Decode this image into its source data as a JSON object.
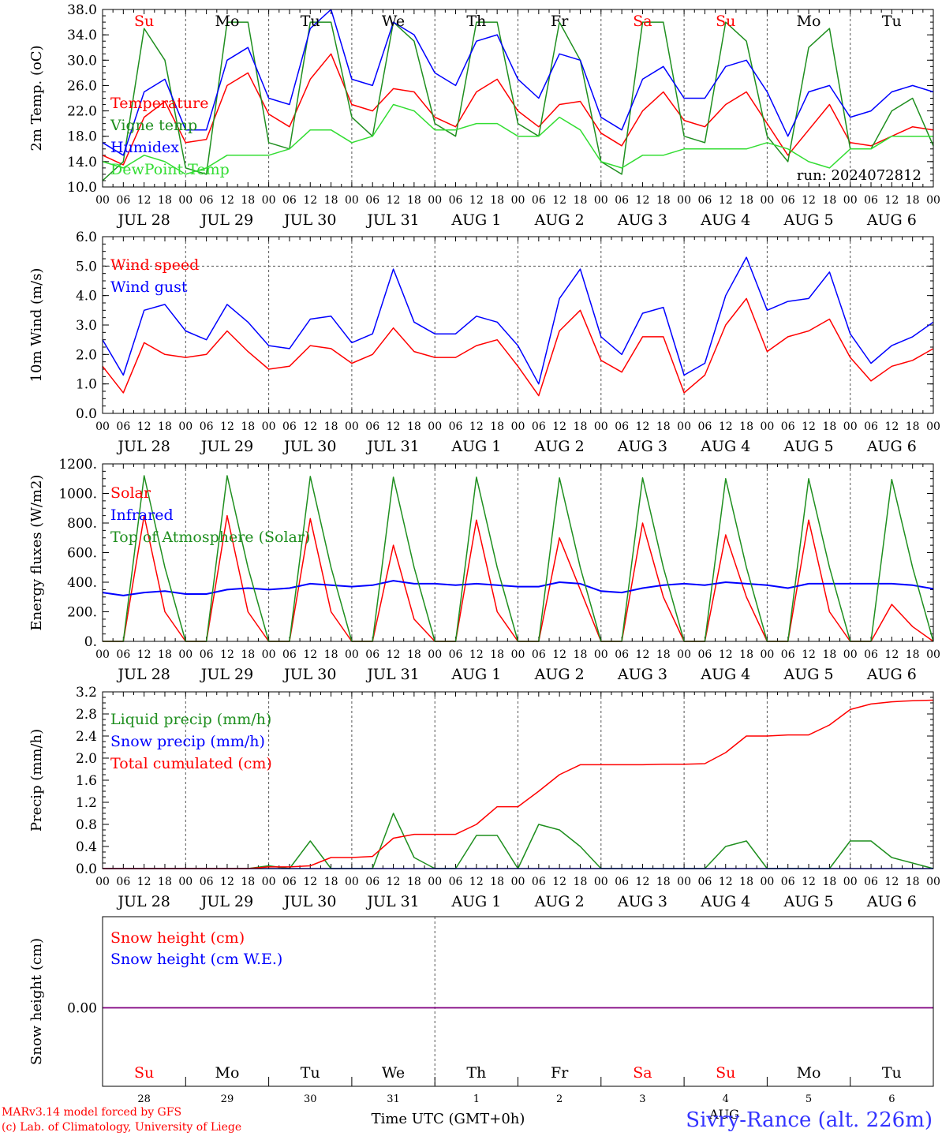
{
  "footer": {
    "model": "MARv3.14 model forced by GFS",
    "lab": "(c) Lab. of Climatology, University of Liege",
    "xlabel": "Time UTC (GMT+0h)",
    "month": "AUG",
    "station": "Sivry-Rance (alt. 226m)"
  },
  "days": [
    {
      "abbr": "Su",
      "date": "JUL 28",
      "num": "28",
      "weekend": true
    },
    {
      "abbr": "Mo",
      "date": "JUL 29",
      "num": "29",
      "weekend": false
    },
    {
      "abbr": "Tu",
      "date": "JUL 30",
      "num": "30",
      "weekend": false
    },
    {
      "abbr": "We",
      "date": "JUL 31",
      "num": "31",
      "weekend": false
    },
    {
      "abbr": "Th",
      "date": "AUG  1",
      "num": "1",
      "weekend": false
    },
    {
      "abbr": "Fr",
      "date": "AUG  2",
      "num": "2",
      "weekend": false
    },
    {
      "abbr": "Sa",
      "date": "AUG  3",
      "num": "3",
      "weekend": true
    },
    {
      "abbr": "Su",
      "date": "AUG  4",
      "num": "4",
      "weekend": true
    },
    {
      "abbr": "Mo",
      "date": "AUG  5",
      "num": "5",
      "weekend": false
    },
    {
      "abbr": "Tu",
      "date": "AUG  6",
      "num": "6",
      "weekend": false
    }
  ],
  "hour_ticks": [
    "00",
    "06",
    "12",
    "18"
  ],
  "last_tick": "00",
  "colors": {
    "red": "#ff0000",
    "green": "#1f8f1f",
    "blue": "#0000ff",
    "lightgreen": "#33dd33",
    "purple": "#800080",
    "weekend": "#ff0000",
    "weekday": "#000000",
    "grid": "#555555"
  },
  "chart_data": [
    {
      "type": "line",
      "ylabel": "2m Temp. (oC)",
      "ylim": [
        10,
        38
      ],
      "yticks": [
        "10.0",
        "14.0",
        "18.0",
        "22.0",
        "26.0",
        "30.0",
        "34.0",
        "38.0"
      ],
      "annotation": "run: 2024072812",
      "x_hours": [
        0,
        6,
        12,
        18,
        24,
        30,
        36,
        42,
        48,
        54,
        60,
        66,
        72,
        78,
        84,
        90,
        96,
        102,
        108,
        114,
        120,
        126,
        132,
        138,
        144,
        150,
        156,
        162,
        168,
        174,
        180,
        186,
        192,
        198,
        204,
        210,
        216,
        222,
        228,
        234,
        240
      ],
      "series": [
        {
          "name": "Temperature",
          "color": "red",
          "values": [
            15,
            13.5,
            21,
            23.5,
            17,
            17.5,
            26,
            28,
            21.5,
            19.5,
            27,
            31,
            23,
            22,
            25.5,
            25,
            21,
            19.5,
            25,
            27,
            22,
            19.5,
            23,
            23.5,
            18.5,
            16.5,
            22,
            25,
            20.5,
            19.5,
            23,
            25,
            20,
            15,
            19,
            23,
            17,
            16.5,
            18,
            19.5,
            19
          ]
        },
        {
          "name": "Vigne temp",
          "color": "green",
          "values": [
            11,
            14,
            35,
            30,
            13,
            12,
            36,
            36,
            17,
            16,
            36,
            36,
            21,
            18,
            36,
            33,
            20,
            18,
            36,
            36,
            20,
            18,
            36,
            30,
            14,
            12,
            36,
            36,
            18,
            17,
            36,
            33,
            18,
            14,
            32,
            35,
            16,
            16,
            22,
            24,
            16.5
          ]
        },
        {
          "name": "Humidex",
          "color": "blue",
          "values": [
            17,
            15,
            25,
            27,
            19,
            19,
            30,
            32,
            24,
            23,
            35,
            38,
            27,
            26,
            36,
            34,
            28,
            26,
            33,
            34,
            27,
            24,
            31,
            30,
            21,
            19,
            27,
            29,
            24,
            24,
            29,
            30,
            25,
            18,
            25,
            26,
            21,
            22,
            25,
            26,
            25
          ]
        },
        {
          "name": "DewPoint Temp",
          "color": "lightgreen",
          "values": [
            14,
            13,
            15,
            14,
            12,
            13,
            15,
            15,
            15,
            16,
            19,
            19,
            17,
            18,
            23,
            22,
            19,
            19,
            20,
            20,
            18,
            18,
            21,
            19,
            14,
            13,
            15,
            15,
            16,
            16,
            16,
            16,
            17,
            16,
            14,
            13,
            16,
            16,
            18,
            18,
            18
          ]
        }
      ]
    },
    {
      "type": "line",
      "ylabel": "10m Wind (m/s)",
      "ylim": [
        0,
        6
      ],
      "yticks": [
        "0.0",
        "1.0",
        "2.0",
        "3.0",
        "4.0",
        "5.0",
        "6.0"
      ],
      "reference_line": 5.0,
      "x_hours": [
        0,
        6,
        12,
        18,
        24,
        30,
        36,
        42,
        48,
        54,
        60,
        66,
        72,
        78,
        84,
        90,
        96,
        102,
        108,
        114,
        120,
        126,
        132,
        138,
        144,
        150,
        156,
        162,
        168,
        174,
        180,
        186,
        192,
        198,
        204,
        210,
        216,
        222,
        228,
        234,
        240
      ],
      "series": [
        {
          "name": "Wind speed",
          "color": "red",
          "values": [
            1.6,
            0.7,
            2.4,
            2.0,
            1.9,
            2.0,
            2.8,
            2.1,
            1.5,
            1.6,
            2.3,
            2.2,
            1.7,
            2.0,
            2.9,
            2.1,
            1.9,
            1.9,
            2.3,
            2.5,
            1.6,
            0.6,
            2.8,
            3.5,
            1.8,
            1.4,
            2.6,
            2.6,
            0.7,
            1.3,
            3.0,
            3.9,
            2.1,
            2.6,
            2.8,
            3.2,
            1.9,
            1.1,
            1.6,
            1.8,
            2.2
          ]
        },
        {
          "name": "Wind gust",
          "color": "blue",
          "values": [
            2.5,
            1.3,
            3.5,
            3.7,
            2.8,
            2.5,
            3.7,
            3.1,
            2.3,
            2.2,
            3.2,
            3.3,
            2.4,
            2.7,
            4.9,
            3.1,
            2.7,
            2.7,
            3.3,
            3.1,
            2.3,
            1.0,
            3.9,
            4.9,
            2.6,
            2.0,
            3.4,
            3.6,
            1.3,
            1.7,
            4.0,
            5.3,
            3.5,
            3.8,
            3.9,
            4.8,
            2.7,
            1.7,
            2.3,
            2.6,
            3.1
          ]
        }
      ]
    },
    {
      "type": "line",
      "ylabel": "Energy fluxes (W/m2)",
      "ylim": [
        0,
        1200
      ],
      "yticks": [
        "0.",
        "200.",
        "400.",
        "600.",
        "800.",
        "1000.",
        "1200."
      ],
      "x_hours": [
        0,
        6,
        12,
        18,
        24,
        30,
        36,
        42,
        48,
        54,
        60,
        66,
        72,
        78,
        84,
        90,
        96,
        102,
        108,
        114,
        120,
        126,
        132,
        138,
        144,
        150,
        156,
        162,
        168,
        174,
        180,
        186,
        192,
        198,
        204,
        210,
        216,
        222,
        228,
        234,
        240
      ],
      "series": [
        {
          "name": "Solar",
          "color": "red",
          "values": [
            0,
            0,
            850,
            200,
            0,
            0,
            850,
            200,
            0,
            0,
            830,
            200,
            0,
            0,
            650,
            150,
            0,
            0,
            820,
            200,
            0,
            0,
            700,
            350,
            0,
            0,
            800,
            300,
            0,
            0,
            720,
            300,
            0,
            0,
            820,
            200,
            0,
            0,
            250,
            100,
            0
          ]
        },
        {
          "name": "Infrared",
          "color": "blue",
          "values": [
            330,
            310,
            330,
            340,
            320,
            320,
            350,
            360,
            350,
            360,
            390,
            380,
            370,
            380,
            410,
            390,
            390,
            380,
            390,
            380,
            370,
            370,
            400,
            390,
            340,
            330,
            360,
            380,
            390,
            380,
            400,
            390,
            380,
            360,
            390,
            390,
            390,
            390,
            390,
            380,
            355
          ]
        },
        {
          "name": "Top of Atmosphere (Solar)",
          "color": "green",
          "values": [
            0,
            0,
            1120,
            500,
            0,
            0,
            1120,
            500,
            0,
            0,
            1115,
            500,
            0,
            0,
            1110,
            500,
            0,
            0,
            1110,
            500,
            0,
            0,
            1105,
            500,
            0,
            0,
            1105,
            500,
            0,
            0,
            1100,
            500,
            0,
            0,
            1100,
            500,
            0,
            0,
            1095,
            500,
            0
          ]
        }
      ]
    },
    {
      "type": "line",
      "ylabel": "Precip (mm/h)",
      "ylim": [
        0,
        3.2
      ],
      "yticks": [
        "0.0",
        "0.4",
        "0.8",
        "1.2",
        "1.6",
        "2.0",
        "2.4",
        "2.8",
        "3.2"
      ],
      "x_hours": [
        0,
        6,
        12,
        18,
        24,
        30,
        36,
        42,
        48,
        54,
        60,
        66,
        72,
        78,
        84,
        90,
        96,
        102,
        108,
        114,
        120,
        126,
        132,
        138,
        144,
        150,
        156,
        162,
        168,
        174,
        180,
        186,
        192,
        198,
        204,
        210,
        216,
        222,
        228,
        234,
        240
      ],
      "series": [
        {
          "name": "Liquid precip (mm/h)",
          "color": "green",
          "values": [
            0,
            0,
            0,
            0,
            0,
            0,
            0,
            0,
            0.05,
            0,
            0.5,
            0,
            0,
            0,
            1.0,
            0.2,
            0,
            0,
            0.6,
            0.6,
            0,
            0.8,
            0.7,
            0.4,
            0,
            0,
            0,
            0,
            0,
            0,
            0.4,
            0.5,
            0,
            0,
            0,
            0,
            0.5,
            0.5,
            0.2,
            0.1,
            0
          ]
        },
        {
          "name": "Snow precip (mm/h)",
          "color": "blue",
          "values": [
            0,
            0,
            0,
            0,
            0,
            0,
            0,
            0,
            0,
            0,
            0,
            0,
            0,
            0,
            0,
            0,
            0,
            0,
            0,
            0,
            0,
            0,
            0,
            0,
            0,
            0,
            0,
            0,
            0,
            0,
            0,
            0,
            0,
            0,
            0,
            0,
            0,
            0,
            0,
            0,
            0
          ]
        },
        {
          "name": "Total cumulated (cm)",
          "color": "red",
          "values": [
            0,
            0,
            0,
            0,
            0,
            0,
            0,
            0,
            0.03,
            0.03,
            0.05,
            0.2,
            0.2,
            0.22,
            0.55,
            0.62,
            0.62,
            0.62,
            0.8,
            1.12,
            1.12,
            1.4,
            1.7,
            1.88,
            1.88,
            1.88,
            1.88,
            1.89,
            1.89,
            1.9,
            2.1,
            2.4,
            2.4,
            2.42,
            2.42,
            2.6,
            2.88,
            2.98,
            3.02,
            3.04,
            3.05
          ]
        }
      ]
    },
    {
      "type": "line",
      "ylabel": "Snow height (cm)",
      "yticks": [
        "0.00"
      ],
      "series": [
        {
          "name": "Snow height (cm)",
          "color": "red",
          "values": [
            0,
            0
          ]
        },
        {
          "name": "Snow height (cm W.E.)",
          "color": "blue",
          "values": [
            0,
            0
          ]
        }
      ]
    }
  ]
}
